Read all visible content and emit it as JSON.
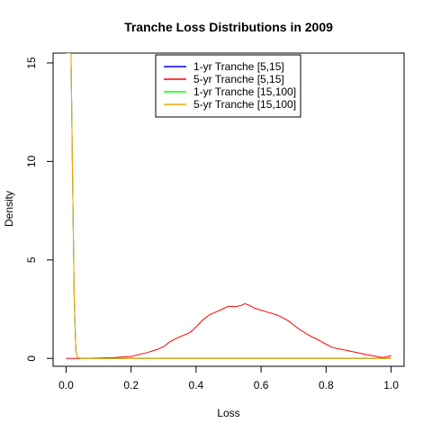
{
  "chart_data": {
    "type": "line",
    "title": "Tranche Loss Distributions in 2009",
    "xlabel": "Loss",
    "ylabel": "Density",
    "xlim": [
      -0.04,
      1.04
    ],
    "ylim": [
      -0.4,
      15.5
    ],
    "xticks": [
      0.0,
      0.2,
      0.4,
      0.6,
      0.8,
      1.0
    ],
    "xtick_labels": [
      "0.0",
      "0.2",
      "0.4",
      "0.6",
      "0.8",
      "1.0"
    ],
    "yticks": [
      0,
      5,
      10,
      15
    ],
    "ytick_labels": [
      "0",
      "5",
      "10",
      "15"
    ],
    "grid": false,
    "legend_position": "top-center",
    "series": [
      {
        "name": "1-yr Tranche [5,15]",
        "color": "#0000ff",
        "x": [
          0.0,
          0.015,
          0.02,
          0.025,
          0.03,
          0.035,
          0.05,
          1.0
        ],
        "y": [
          15.5,
          15.5,
          9.0,
          3.0,
          0.4,
          0.05,
          0.0,
          0.0
        ]
      },
      {
        "name": "5-yr Tranche [5,15]",
        "color": "#ff0000",
        "x": [
          0.0,
          0.05,
          0.1,
          0.15,
          0.2,
          0.22,
          0.25,
          0.28,
          0.3,
          0.32,
          0.35,
          0.38,
          0.4,
          0.42,
          0.44,
          0.46,
          0.48,
          0.5,
          0.52,
          0.54,
          0.55,
          0.56,
          0.58,
          0.6,
          0.62,
          0.65,
          0.68,
          0.7,
          0.72,
          0.75,
          0.78,
          0.8,
          0.82,
          0.85,
          0.88,
          0.9,
          0.92,
          0.95,
          0.97,
          0.99,
          1.0
        ],
        "y": [
          0.0,
          0.0,
          0.02,
          0.05,
          0.1,
          0.18,
          0.3,
          0.45,
          0.6,
          0.85,
          1.1,
          1.3,
          1.6,
          1.95,
          2.2,
          2.35,
          2.5,
          2.65,
          2.62,
          2.7,
          2.78,
          2.72,
          2.55,
          2.45,
          2.35,
          2.2,
          1.95,
          1.7,
          1.45,
          1.15,
          0.9,
          0.72,
          0.55,
          0.45,
          0.35,
          0.28,
          0.2,
          0.12,
          0.05,
          0.08,
          0.15
        ]
      },
      {
        "name": "1-yr Tranche [15,100]",
        "color": "#00ff00",
        "x": [
          0.0,
          0.015,
          0.02,
          0.025,
          0.03,
          0.035,
          0.05,
          1.0
        ],
        "y": [
          15.5,
          15.5,
          9.0,
          3.0,
          0.4,
          0.05,
          0.0,
          0.0
        ]
      },
      {
        "name": "5-yr Tranche [15,100]",
        "color": "#ffa500",
        "x": [
          0.0,
          0.015,
          0.02,
          0.025,
          0.03,
          0.035,
          0.05,
          1.0
        ],
        "y": [
          15.5,
          15.5,
          9.0,
          3.0,
          0.4,
          0.05,
          0.0,
          0.0
        ]
      }
    ]
  }
}
